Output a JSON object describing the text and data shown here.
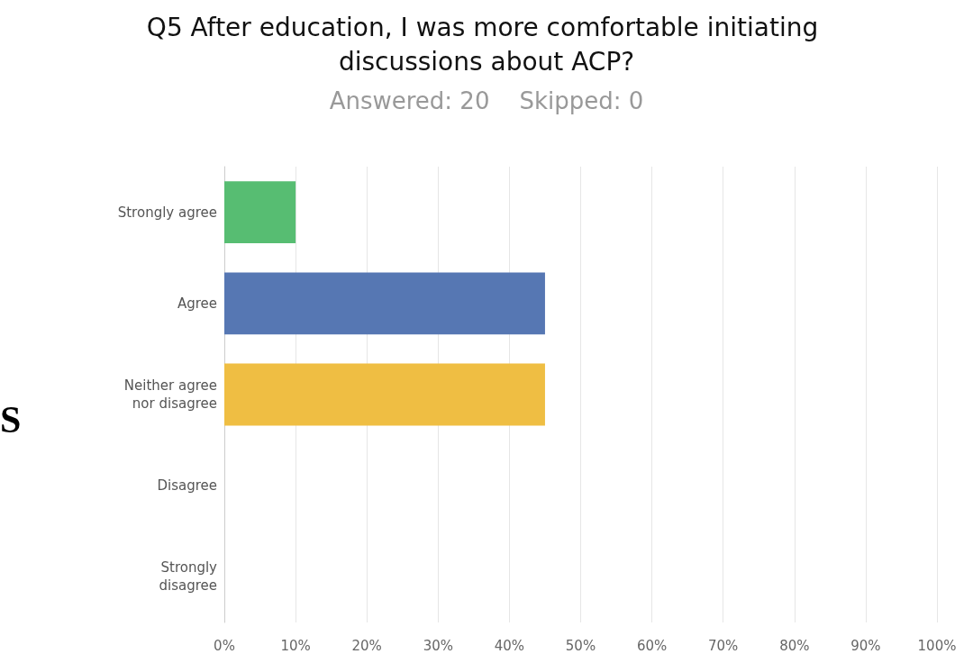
{
  "chart_data": {
    "type": "bar",
    "orientation": "horizontal",
    "title": "Q5 After education, I was more comfortable initiating discussions about ACP?",
    "subtitle": "Answered: 20    Skipped: 0",
    "categories": [
      "Strongly agree",
      "Agree",
      "Neither agree\nnor disagree",
      "Disagree",
      "Strongly\ndisagree"
    ],
    "values": [
      10,
      45,
      45,
      0,
      0
    ],
    "colors": [
      "#57bd72",
      "#5677b3",
      "#efbe43",
      "#e06c6c",
      "#8e6cc0"
    ],
    "xlim": [
      0,
      100
    ],
    "xticks": [
      {
        "value": 0,
        "label": "0%"
      },
      {
        "value": 10,
        "label": "10%"
      },
      {
        "value": 20,
        "label": "20%"
      },
      {
        "value": 30,
        "label": "30%"
      },
      {
        "value": 40,
        "label": "40%"
      },
      {
        "value": 50,
        "label": "50%"
      },
      {
        "value": 60,
        "label": "60%"
      },
      {
        "value": 70,
        "label": "70%"
      },
      {
        "value": 80,
        "label": "80%"
      },
      {
        "value": 90,
        "label": "90%"
      },
      {
        "value": 100,
        "label": "100%"
      }
    ],
    "grid": "x",
    "annotations": [
      "S"
    ]
  }
}
